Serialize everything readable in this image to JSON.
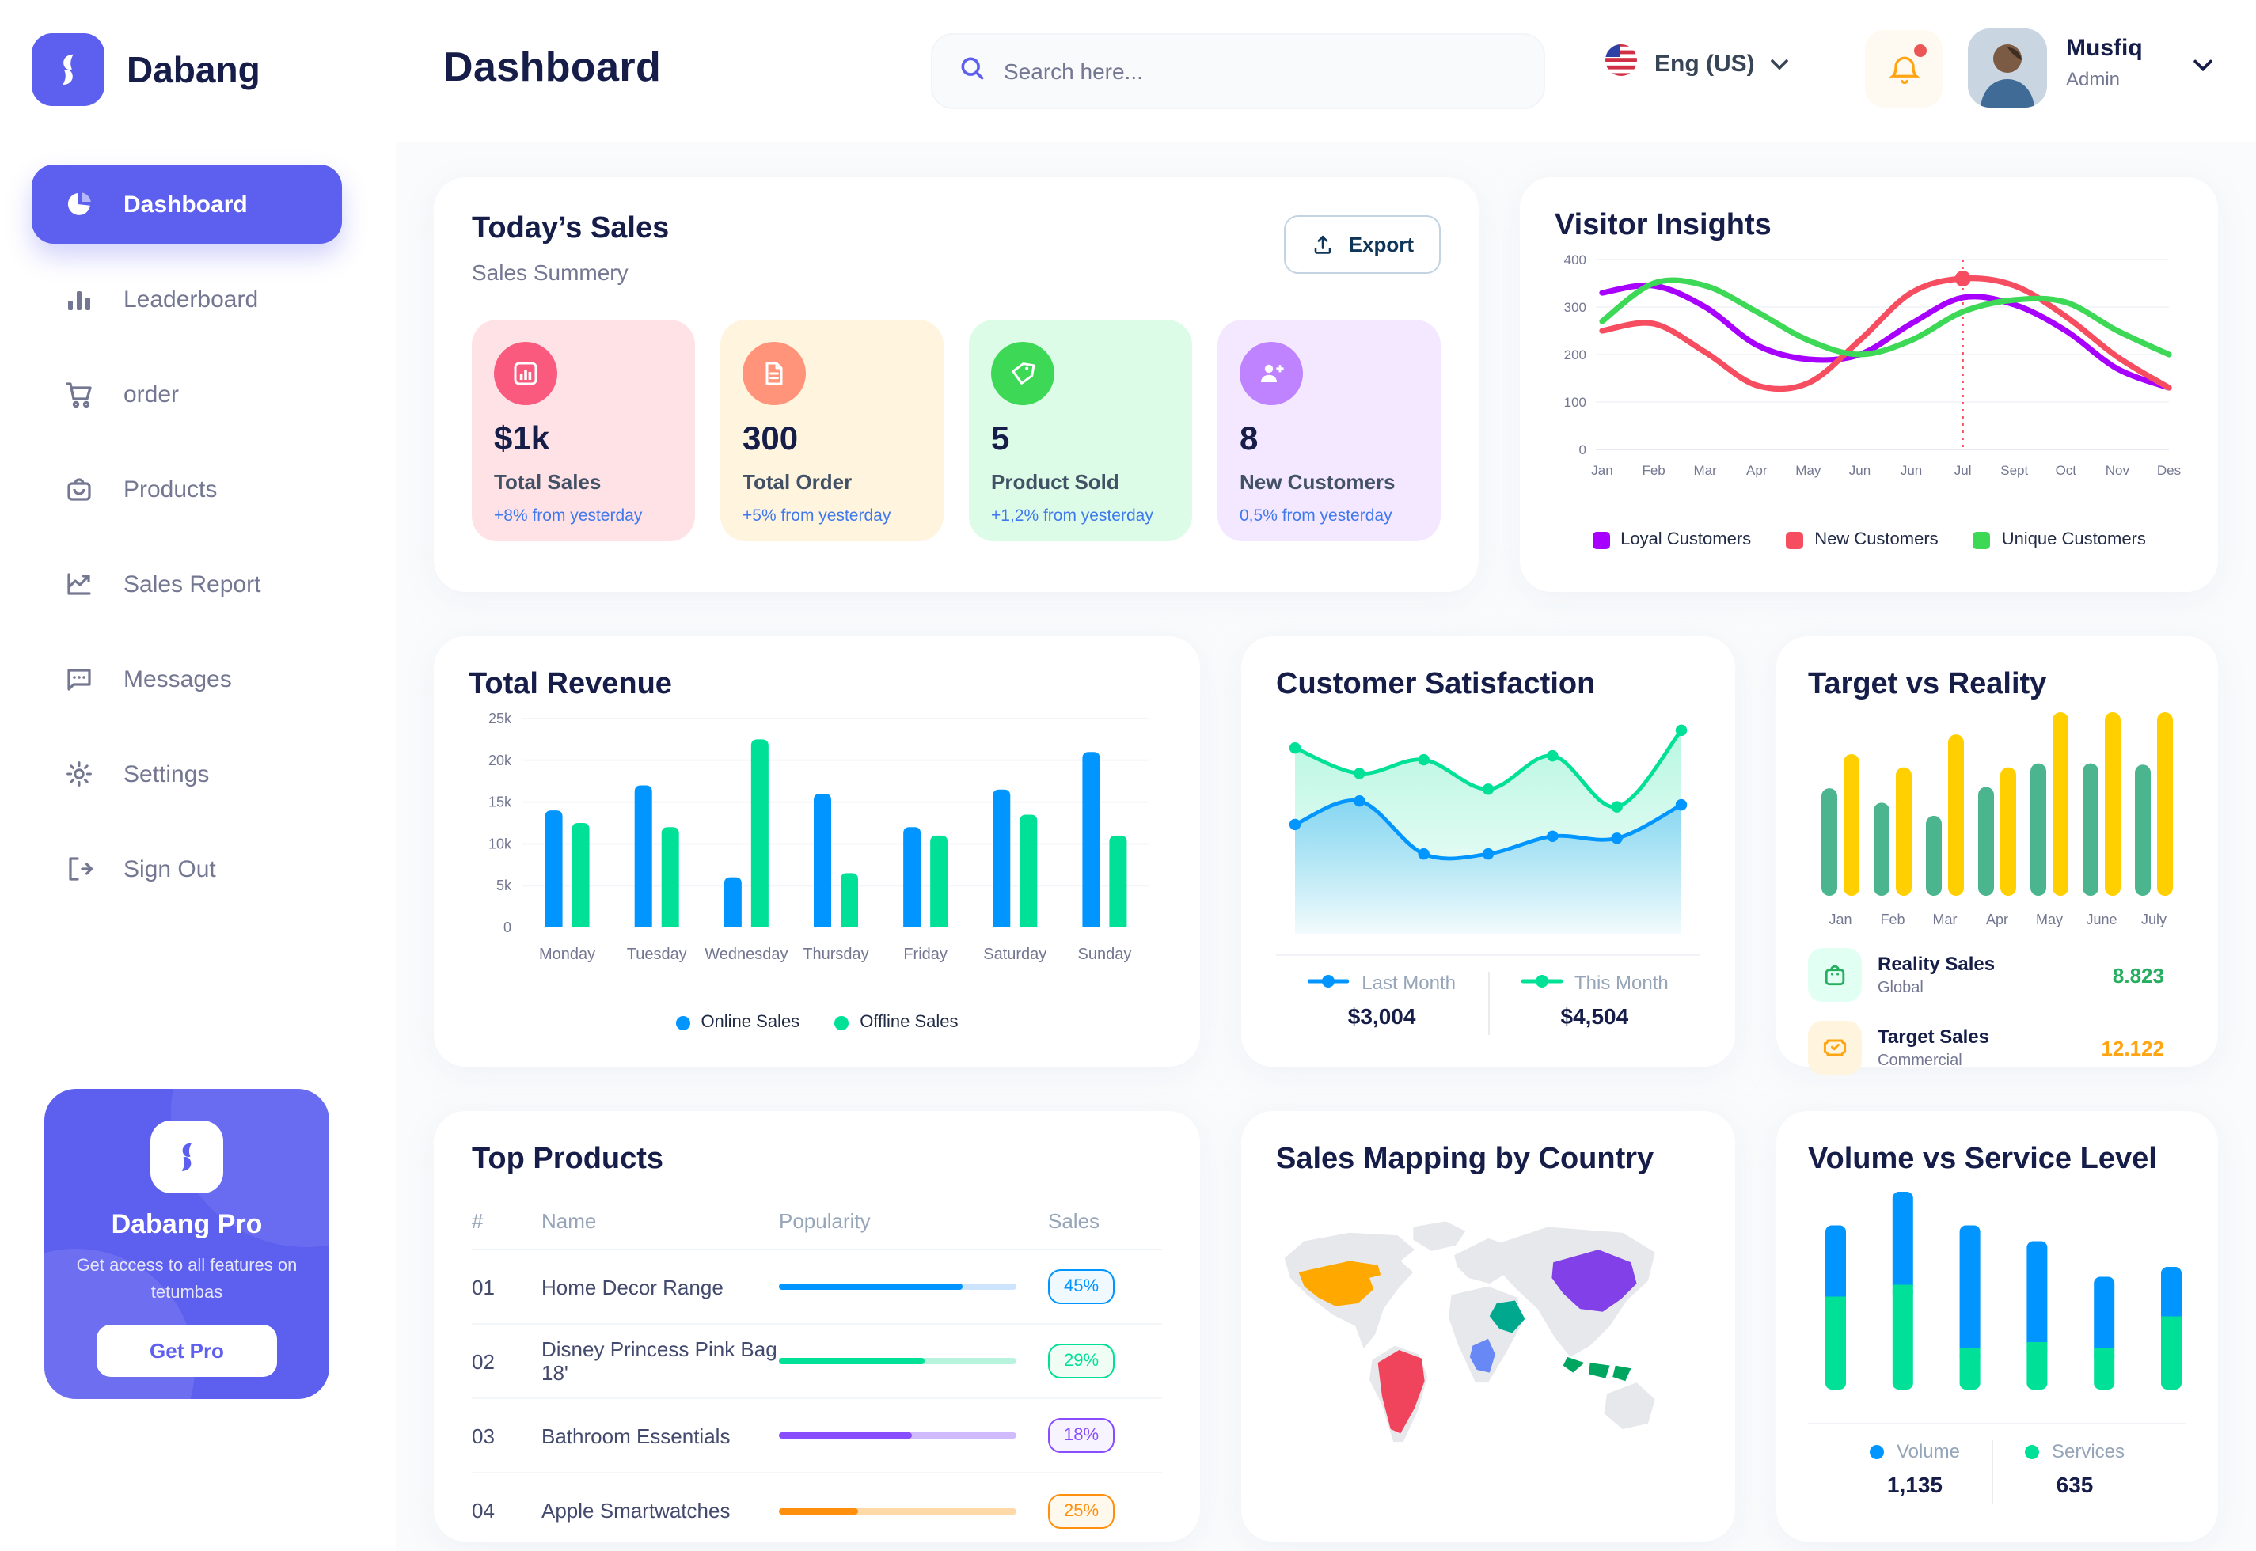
{
  "brand": {
    "name": "Dabang"
  },
  "header": {
    "title": "Dashboard",
    "search_placeholder": "Search here...",
    "language": "Eng (US)",
    "user": {
      "name": "Musfiq",
      "role": "Admin"
    }
  },
  "sidebar": {
    "items": [
      {
        "label": "Dashboard",
        "icon": "dashboard",
        "active": true
      },
      {
        "label": "Leaderboard",
        "icon": "leaderboard",
        "active": false
      },
      {
        "label": "order",
        "icon": "cart",
        "active": false
      },
      {
        "label": "Products",
        "icon": "bag",
        "active": false
      },
      {
        "label": "Sales Report",
        "icon": "chart-line",
        "active": false
      },
      {
        "label": "Messages",
        "icon": "message",
        "active": false
      },
      {
        "label": "Settings",
        "icon": "gear",
        "active": false
      },
      {
        "label": "Sign Out",
        "icon": "signout",
        "active": false
      }
    ],
    "pro": {
      "title": "Dabang Pro",
      "description": "Get access to all features on tetumbas",
      "button": "Get Pro"
    }
  },
  "todays_sales": {
    "title": "Today’s Sales",
    "subtitle": "Sales Summery",
    "export_label": "Export",
    "stats": [
      {
        "icon": "bar-stats",
        "icon_bg": "#FA5A7D",
        "card_bg": "#FFE2E5",
        "value": "$1k",
        "label": "Total Sales",
        "delta": "+8% from yesterday"
      },
      {
        "icon": "file",
        "icon_bg": "#FF947A",
        "card_bg": "#FFF4DE",
        "value": "300",
        "label": "Total Order",
        "delta": "+5% from yesterday"
      },
      {
        "icon": "tag",
        "icon_bg": "#3CD856",
        "card_bg": "#DCFCE7",
        "value": "5",
        "label": "Product Sold",
        "delta": "+1,2% from yesterday"
      },
      {
        "icon": "user-plus",
        "icon_bg": "#BF83FF",
        "card_bg": "#F3E8FF",
        "value": "8",
        "label": "New Customers",
        "delta": "0,5% from yesterday"
      }
    ],
    "delta_color": "#4079ED"
  },
  "top_products": {
    "title": "Top Products",
    "headers": {
      "num": "#",
      "name": "Name",
      "popularity": "Popularity",
      "sales": "Sales"
    },
    "rows": [
      {
        "num": "01",
        "name": "Home Decor Range",
        "pct": 77,
        "color": "#0095FF",
        "track": "#CDE4FF",
        "badge": "45%",
        "badge_bg": "#F0F9FF"
      },
      {
        "num": "02",
        "name": "Disney Princess Pink Bag 18'",
        "pct": 61,
        "color": "#00E096",
        "track": "#B8F3DE",
        "badge": "29%",
        "badge_bg": "#F0FDF4"
      },
      {
        "num": "03",
        "name": "Bathroom Essentials",
        "pct": 56,
        "color": "#884DFF",
        "track": "#D1BBFF",
        "badge": "18%",
        "badge_bg": "#F8F4FF"
      },
      {
        "num": "04",
        "name": "Apple Smartwatches",
        "pct": 33,
        "color": "#FF8F0D",
        "track": "#FFD9A7",
        "badge": "25%",
        "badge_bg": "#FFF8EC"
      }
    ]
  },
  "sales_mapping": {
    "title": "Sales Mapping by Country",
    "countries": [
      {
        "name": "United States",
        "color": "#FFA800"
      },
      {
        "name": "Brazil",
        "color": "#F0435C"
      },
      {
        "name": "Saudi Arabia",
        "color": "#00A88E"
      },
      {
        "name": "DR Congo",
        "color": "#6888F5"
      },
      {
        "name": "China",
        "color": "#8240E8"
      },
      {
        "name": "Indonesia",
        "color": "#00A660"
      }
    ]
  },
  "chart_data": {
    "visitor_insights": {
      "type": "line",
      "title": "Visitor Insights",
      "x": [
        "Jan",
        "Feb",
        "Mar",
        "Apr",
        "May",
        "Jun",
        "Jun",
        "Jul",
        "Sept",
        "Oct",
        "Nov",
        "Des"
      ],
      "ylim": [
        0,
        400
      ],
      "yticks": [
        0,
        100,
        200,
        300,
        400
      ],
      "series": [
        {
          "name": "Loyal Customers",
          "color": "#A700FF",
          "values": [
            330,
            345,
            300,
            220,
            190,
            200,
            265,
            320,
            305,
            250,
            170,
            130
          ]
        },
        {
          "name": "New Customers",
          "color": "#F64E60",
          "values": [
            250,
            265,
            205,
            135,
            140,
            230,
            330,
            360,
            345,
            280,
            195,
            130
          ]
        },
        {
          "name": "Unique Customers",
          "color": "#3CD856",
          "values": [
            270,
            350,
            345,
            290,
            230,
            200,
            230,
            290,
            315,
            310,
            250,
            200
          ]
        }
      ],
      "marker": {
        "series_index": 1,
        "index": 7,
        "value": 360
      }
    },
    "total_revenue": {
      "type": "bar",
      "title": "Total Revenue",
      "categories": [
        "Monday",
        "Tuesday",
        "Wednesday",
        "Thursday",
        "Friday",
        "Saturday",
        "Sunday"
      ],
      "ylim": [
        0,
        25
      ],
      "ytick_labels": [
        "0",
        "5k",
        "10k",
        "15k",
        "20k",
        "25k"
      ],
      "series": [
        {
          "name": "Online Sales",
          "color": "#0095FF",
          "values": [
            14,
            17,
            6,
            16,
            12,
            16.5,
            21
          ]
        },
        {
          "name": "Offline Sales",
          "color": "#00E096",
          "values": [
            12.5,
            12,
            22.5,
            6.5,
            11,
            13.5,
            11
          ]
        }
      ]
    },
    "customer_satisfaction": {
      "type": "area",
      "title": "Customer Satisfaction",
      "ylim": [
        0,
        100
      ],
      "series": [
        {
          "name": "Last Month",
          "color": "#0095FF",
          "total": "$3,004",
          "values": [
            46,
            58,
            31,
            31,
            40,
            39,
            56
          ]
        },
        {
          "name": "This Month",
          "color": "#00E096",
          "total": "$4,504",
          "values": [
            85,
            72,
            79,
            64,
            81,
            55,
            94
          ]
        }
      ]
    },
    "target_vs_reality": {
      "type": "bar",
      "title": "Target vs Reality",
      "categories": [
        "Jan",
        "Feb",
        "Mar",
        "Apr",
        "May",
        "June",
        "July"
      ],
      "ylim": [
        0,
        14
      ],
      "series": [
        {
          "name": "Reality Sales",
          "color": "#4AB58E",
          "values": [
            8.2,
            7.1,
            6.1,
            8.3,
            10.1,
            10.1,
            10
          ]
        },
        {
          "name": "Target Sales",
          "color": "#FFCF00",
          "values": [
            10.8,
            9.8,
            12.3,
            9.8,
            14,
            14,
            14
          ]
        }
      ],
      "legend": [
        {
          "name": "Reality Sales",
          "sub": "Global",
          "value": "8.823",
          "value_color": "#27AE60",
          "tile_bg": "#E2FFF3",
          "icon": "bag-green"
        },
        {
          "name": "Target Sales",
          "sub": "Commercial",
          "value": "12.122",
          "value_color": "#FFA412",
          "tile_bg": "#FFF4DE",
          "icon": "ticket"
        }
      ]
    },
    "volume_service": {
      "type": "stacked-bar",
      "title": "Volume vs Service Level",
      "ylim": [
        0,
        100
      ],
      "series": [
        {
          "name": "Volume",
          "color": "#0095FF",
          "total": "1,135",
          "values": [
            36,
            47,
            62,
            51,
            36,
            25
          ]
        },
        {
          "name": "Services",
          "color": "#00E096",
          "total": "635",
          "values": [
            47,
            53,
            21,
            24,
            21,
            37
          ]
        }
      ]
    }
  }
}
